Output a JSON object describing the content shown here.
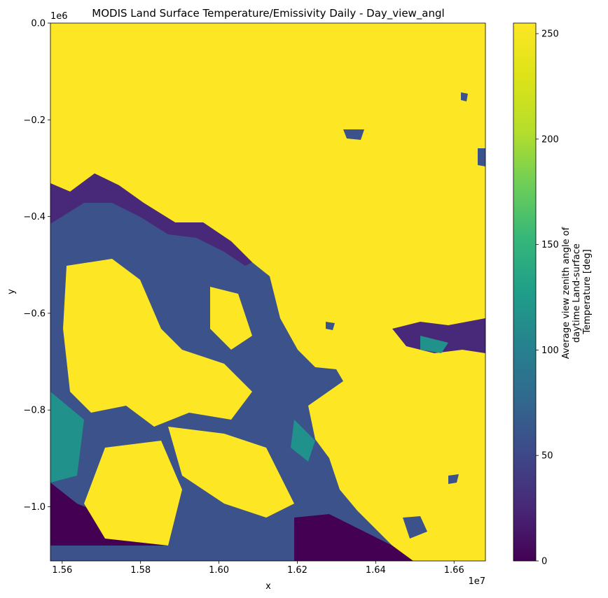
{
  "chart_data": {
    "type": "heatmap",
    "title": "MODIS Land Surface Temperature/Emissivity Daily - Day_view_angl",
    "xlabel": "x",
    "ylabel": "y",
    "x_offset_label": "1e7",
    "y_offset_label": "1e6",
    "xlim": [
      1.557,
      1.668
    ],
    "ylim": [
      -1.112,
      0.0
    ],
    "x_ticks": [
      {
        "value": 1.56,
        "label": "1.56"
      },
      {
        "value": 1.58,
        "label": "1.58"
      },
      {
        "value": 1.6,
        "label": "1.60"
      },
      {
        "value": 1.62,
        "label": "1.62"
      },
      {
        "value": 1.64,
        "label": "1.64"
      },
      {
        "value": 1.66,
        "label": "1.66"
      }
    ],
    "y_ticks": [
      {
        "value": 0.0,
        "label": "0.0"
      },
      {
        "value": -0.2,
        "label": "−0.2"
      },
      {
        "value": -0.4,
        "label": "−0.4"
      },
      {
        "value": -0.6,
        "label": "−0.6"
      },
      {
        "value": -0.8,
        "label": "−0.8"
      },
      {
        "value": -1.0,
        "label": "−1.0"
      }
    ],
    "colorbar": {
      "colormap": "viridis",
      "label_lines": [
        "Average view zenith angle of",
        "daytime Land-surface",
        "Temperature [deg]"
      ],
      "range": [
        0,
        255
      ],
      "ticks": [
        {
          "value": 0,
          "label": "0"
        },
        {
          "value": 50,
          "label": "50"
        },
        {
          "value": 100,
          "label": "100"
        },
        {
          "value": 150,
          "label": "150"
        },
        {
          "value": 200,
          "label": "200"
        },
        {
          "value": 250,
          "label": "250"
        }
      ]
    },
    "background_value": 255,
    "colors": {
      "high": "#fde725",
      "low": "#440154",
      "mid_low": "#3b528b",
      "mid": "#21918c",
      "dark": "#482878"
    },
    "grid": false
  }
}
